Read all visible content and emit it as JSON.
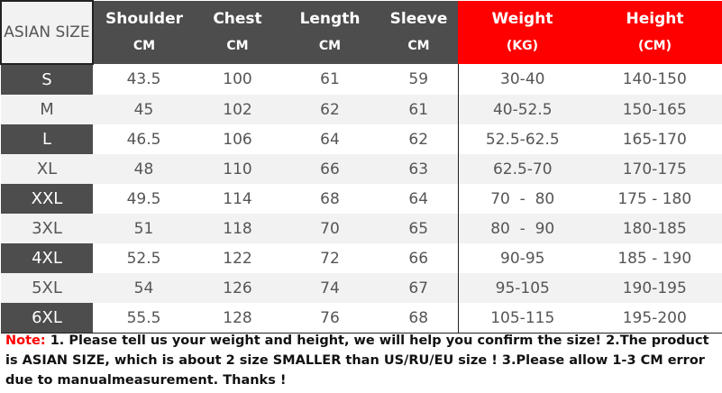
{
  "header": {
    "size": "ASIAN SIZE",
    "columns": [
      {
        "label": "Shoulder",
        "unit": "CM"
      },
      {
        "label": "Chest",
        "unit": "CM"
      },
      {
        "label": "Length",
        "unit": "CM"
      },
      {
        "label": "Sleeve",
        "unit": "CM"
      },
      {
        "label": "Weight",
        "unit": "(KG)"
      },
      {
        "label": "Height",
        "unit": "(CM)"
      }
    ]
  },
  "rows": [
    [
      "S",
      "43.5",
      "100",
      "61",
      "59",
      "30-40",
      "140-150"
    ],
    [
      "M",
      "45",
      "102",
      "62",
      "61",
      "40-52.5",
      "150-165"
    ],
    [
      "L",
      "46.5",
      "106",
      "64",
      "62",
      "52.5-62.5",
      "165-170"
    ],
    [
      "XL",
      "48",
      "110",
      "66",
      "63",
      "62.5-70",
      "170-175"
    ],
    [
      "XXL",
      "49.5",
      "114",
      "68",
      "64",
      "70  -  80",
      "175 - 180"
    ],
    [
      "3XL",
      "51",
      "118",
      "70",
      "65",
      "80  -  90",
      "180-185"
    ],
    [
      "4XL",
      "52.5",
      "122",
      "72",
      "66",
      "90-95",
      "185 - 190"
    ],
    [
      "5XL",
      "54",
      "126",
      "74",
      "67",
      "95-105",
      "190-195"
    ],
    [
      "6XL",
      "55.5",
      "128",
      "76",
      "68",
      "105-115",
      "195-200"
    ]
  ],
  "note": {
    "label": "Note:",
    "text": " 1. Please tell us your weight and height, we will help you confirm the size!  2.The product is ASIAN SIZE, which is about 2 size SMALLER than US/RU/EU size ! 3.Please allow 1-3 CM error due to manualmeasurement.  Thanks !"
  },
  "colors": {
    "header": "#4d4d4d",
    "accent": "#ff0000",
    "stripe": "#f2f2f2"
  }
}
